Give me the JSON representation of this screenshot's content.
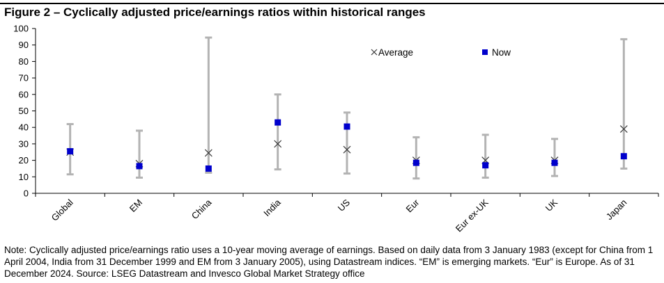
{
  "title": "Figure 2 – Cyclically adjusted price/earnings ratios within historical ranges",
  "note": "Note: Cyclically adjusted price/earnings ratio uses a 10-year moving average of earnings. Based on daily data from 3 January 1983 (except for China from 1 April 2004, India from 31 December 1999 and EM from 3 January 2005), using Datastream indices. “EM” is emerging markets. “Eur” is Europe. As of 31 December 2024. Source: LSEG Datastream and Invesco Global Market Strategy office",
  "colors": {
    "range": "#b3b3b3",
    "now": "#0000cc",
    "average": "#3a3a3a",
    "axis": "#000000"
  },
  "chart_data": {
    "type": "range-marker",
    "title": "Figure 2 – Cyclically adjusted price/earnings ratios within historical ranges",
    "categories": [
      "Global",
      "EM",
      "China",
      "India",
      "US",
      "Eur",
      "Eur ex-UK",
      "UK",
      "Japan"
    ],
    "ylim": [
      0,
      100
    ],
    "yticks": [
      0,
      10,
      20,
      30,
      40,
      50,
      60,
      70,
      80,
      90,
      100
    ],
    "grid": false,
    "legend": {
      "position": "top-right"
    },
    "range": {
      "min": [
        11.5,
        9.5,
        12.5,
        14.5,
        12.0,
        9.0,
        9.5,
        10.5,
        15.0
      ],
      "max": [
        42.0,
        38.0,
        94.5,
        60.0,
        49.0,
        34.0,
        35.5,
        33.0,
        93.5
      ]
    },
    "series": [
      {
        "name": "Average",
        "marker": "x",
        "values": [
          25.0,
          18.0,
          24.5,
          30.0,
          26.5,
          20.0,
          20.0,
          20.0,
          39.0
        ]
      },
      {
        "name": "Now",
        "marker": "square",
        "values": [
          25.5,
          16.5,
          15.0,
          43.0,
          40.5,
          18.5,
          17.0,
          18.5,
          22.5
        ]
      }
    ]
  }
}
